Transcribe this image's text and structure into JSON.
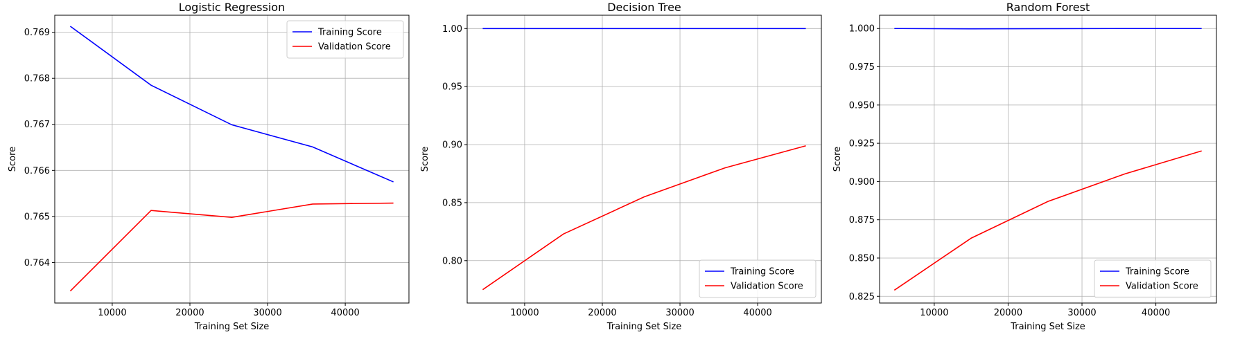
{
  "chart_data": [
    {
      "type": "line",
      "title": "Logistic Regression",
      "xlabel": "Training Set Size",
      "ylabel": "Score",
      "xlim": [
        2600,
        48200
      ],
      "ylim": [
        0.76312,
        0.76937
      ],
      "xticks": [
        10000,
        20000,
        30000,
        40000
      ],
      "xtick_labels": [
        "10000",
        "20000",
        "30000",
        "40000"
      ],
      "yticks": [
        0.764,
        0.765,
        0.766,
        0.767,
        0.768,
        0.769
      ],
      "ytick_labels": [
        "0.764",
        "0.765",
        "0.766",
        "0.767",
        "0.768",
        "0.769"
      ],
      "grid": true,
      "legend_position": "upper-right",
      "x": [
        4600,
        15000,
        25400,
        35800,
        46200
      ],
      "series": [
        {
          "name": "Training Score",
          "color": "#0000ff",
          "values": [
            0.76913,
            0.76785,
            0.76699,
            0.76651,
            0.76575
          ]
        },
        {
          "name": "Validation Score",
          "color": "#ff0000",
          "values": [
            0.76338,
            0.76513,
            0.76498,
            0.76527,
            0.76529
          ]
        }
      ]
    },
    {
      "type": "line",
      "title": "Decision Tree",
      "xlabel": "Training Set Size",
      "ylabel": "Score",
      "xlim": [
        2600,
        48200
      ],
      "ylim": [
        0.7635,
        1.0115
      ],
      "xticks": [
        10000,
        20000,
        30000,
        40000
      ],
      "xtick_labels": [
        "10000",
        "20000",
        "30000",
        "40000"
      ],
      "yticks": [
        0.8,
        0.85,
        0.9,
        0.95,
        1.0
      ],
      "ytick_labels": [
        "0.80",
        "0.85",
        "0.90",
        "0.95",
        "1.00"
      ],
      "grid": true,
      "legend_position": "lower-right",
      "x": [
        4600,
        15000,
        25400,
        35800,
        46200
      ],
      "series": [
        {
          "name": "Training Score",
          "color": "#0000ff",
          "values": [
            1.0,
            1.0,
            1.0,
            1.0,
            1.0
          ]
        },
        {
          "name": "Validation Score",
          "color": "#ff0000",
          "values": [
            0.775,
            0.823,
            0.855,
            0.88,
            0.899
          ]
        }
      ]
    },
    {
      "type": "line",
      "title": "Random Forest",
      "xlabel": "Training Set Size",
      "ylabel": "Score",
      "xlim": [
        2600,
        48200
      ],
      "ylim": [
        0.8206,
        1.0087
      ],
      "xticks": [
        10000,
        20000,
        30000,
        40000
      ],
      "xtick_labels": [
        "10000",
        "20000",
        "30000",
        "40000"
      ],
      "yticks": [
        0.825,
        0.85,
        0.875,
        0.9,
        0.925,
        0.95,
        0.975,
        1.0
      ],
      "ytick_labels": [
        "0.825",
        "0.850",
        "0.875",
        "0.900",
        "0.925",
        "0.950",
        "0.975",
        "1.000"
      ],
      "grid": true,
      "legend_position": "lower-right",
      "x": [
        4600,
        15000,
        25400,
        35800,
        46200
      ],
      "series": [
        {
          "name": "Training Score",
          "color": "#0000ff",
          "values": [
            1.0,
            0.9998,
            0.9999,
            1.0,
            1.0
          ]
        },
        {
          "name": "Validation Score",
          "color": "#ff0000",
          "values": [
            0.829,
            0.863,
            0.887,
            0.905,
            0.92
          ]
        }
      ]
    }
  ]
}
